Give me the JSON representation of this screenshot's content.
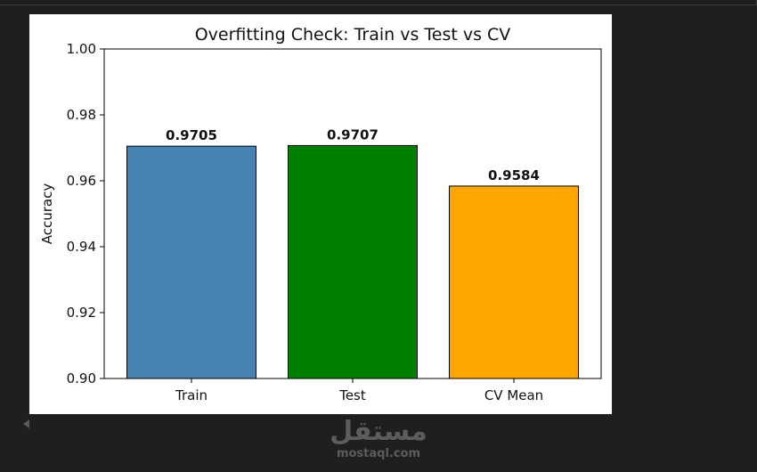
{
  "chart_data": {
    "type": "bar",
    "title": "Overfitting Check: Train vs Test vs CV",
    "xlabel": "",
    "ylabel": "Accuracy",
    "categories": [
      "Train",
      "Test",
      "CV Mean"
    ],
    "values": [
      0.9705,
      0.9707,
      0.9584
    ],
    "value_labels": [
      "0.9705",
      "0.9707",
      "0.9584"
    ],
    "colors": [
      "#4682b4",
      "#008000",
      "#ffa500"
    ],
    "ylim": [
      0.9,
      1.0
    ],
    "yticks": [
      0.9,
      0.92,
      0.94,
      0.96,
      0.98,
      1.0
    ],
    "ytick_labels": [
      "0.90",
      "0.92",
      "0.94",
      "0.96",
      "0.98",
      "1.00"
    ],
    "grid": false
  },
  "watermark": {
    "logo": "مستقل",
    "url": "mostaql.com"
  }
}
